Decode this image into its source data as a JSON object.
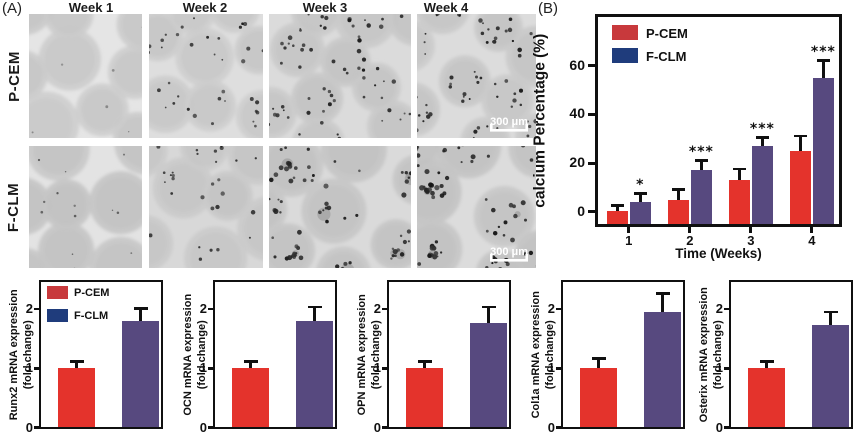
{
  "panel_a": {
    "label": "(A)",
    "col_headers": [
      "Week 1",
      "Week 2",
      "Week 3",
      "Week 4"
    ],
    "row_labels": [
      "P-CEM",
      "F-CLM"
    ],
    "scale_bar_text": "300 μm",
    "cells": [
      {
        "name": "micrograph-p-cem-week-1",
        "row": "P-CEM",
        "col": "Week 1",
        "spheres": 9,
        "dots_per_sphere": 1,
        "dot_r": 1.0,
        "dot_opacity": 0.45,
        "bg": "#e5e5e5",
        "sphere_fill": "#cbcbcb",
        "clustered": false,
        "scalebar": false
      },
      {
        "name": "micrograph-p-cem-week-2",
        "row": "P-CEM",
        "col": "Week 2",
        "spheres": 8,
        "dots_per_sphere": 6,
        "dot_r": 1.5,
        "dot_opacity": 0.85,
        "bg": "#dedede",
        "sphere_fill": "#cdcdcd",
        "clustered": false,
        "scalebar": false
      },
      {
        "name": "micrograph-p-cem-week-3",
        "row": "P-CEM",
        "col": "Week 3",
        "spheres": 10,
        "dots_per_sphere": 9,
        "dot_r": 1.6,
        "dot_opacity": 0.9,
        "bg": "#dbdbdb",
        "sphere_fill": "#c9c9c9",
        "clustered": false,
        "scalebar": false
      },
      {
        "name": "micrograph-p-cem-week-4",
        "row": "P-CEM",
        "col": "Week 4",
        "spheres": 9,
        "dots_per_sphere": 11,
        "dot_r": 1.6,
        "dot_opacity": 0.9,
        "bg": "#dcdcdc",
        "sphere_fill": "#cacaca",
        "clustered": false,
        "scalebar": true
      },
      {
        "name": "micrograph-f-clm-week-1",
        "row": "F-CLM",
        "col": "Week 1",
        "spheres": 9,
        "dots_per_sphere": 3,
        "dot_r": 1.2,
        "dot_opacity": 0.6,
        "bg": "#e3e3e3",
        "sphere_fill": "#c6c6c6",
        "clustered": false,
        "scalebar": false
      },
      {
        "name": "micrograph-f-clm-week-2",
        "row": "F-CLM",
        "col": "Week 2",
        "spheres": 8,
        "dots_per_sphere": 7,
        "dot_r": 1.6,
        "dot_opacity": 0.85,
        "bg": "#d8d8d8",
        "sphere_fill": "#cacaca",
        "clustered": false,
        "scalebar": false
      },
      {
        "name": "micrograph-f-clm-week-3",
        "row": "F-CLM",
        "col": "Week 3",
        "spheres": 10,
        "dots_per_sphere": 14,
        "dot_r": 1.8,
        "dot_opacity": 0.9,
        "bg": "#dadada",
        "sphere_fill": "#c6c6c6",
        "clustered": true,
        "scalebar": false
      },
      {
        "name": "micrograph-f-clm-week-4",
        "row": "F-CLM",
        "col": "Week 4",
        "spheres": 10,
        "dots_per_sphere": 18,
        "dot_r": 1.9,
        "dot_opacity": 0.95,
        "bg": "#dcdcdc",
        "sphere_fill": "#c5c5c5",
        "clustered": true,
        "scalebar": true
      }
    ]
  },
  "panel_b": {
    "label": "(B)"
  },
  "legend": {
    "entries": [
      {
        "label": "P-CEM",
        "swatch_color": "#c8393c",
        "bar_color": "#e4332c"
      },
      {
        "label": "F-CLM",
        "swatch_color": "#1f3c7c",
        "bar_color": "#57497f"
      }
    ]
  },
  "chart_data": [
    {
      "id": "calcium-percentage",
      "type": "bar",
      "panel": "B",
      "xlabel": "Time (Weeks)",
      "ylabel": "calcium Percentage (%)",
      "categories": [
        "1",
        "2",
        "3",
        "4"
      ],
      "series": [
        {
          "name": "P-CEM",
          "color": "#e4332c",
          "values": [
            0.5,
            5,
            13,
            25
          ],
          "errors": [
            2,
            4,
            4.5,
            6
          ]
        },
        {
          "name": "F-CLM",
          "color": "#57497f",
          "values": [
            4,
            17,
            27,
            55
          ],
          "errors": [
            3.5,
            4,
            3.5,
            7
          ]
        }
      ],
      "significance": {
        "on_series": "F-CLM",
        "labels": [
          "*",
          "***",
          "***",
          "***"
        ]
      },
      "yticks": [
        0,
        20,
        40,
        60
      ],
      "ylim": [
        -5,
        80
      ],
      "grid": false,
      "legend_position": "top-left"
    },
    {
      "id": "runx2",
      "type": "bar",
      "ylabel": "Runx2 mRNA expression",
      "ylabel2": "(fold change)",
      "categories": [
        "P-CEM",
        "F-CLM"
      ],
      "values": [
        1.0,
        1.8
      ],
      "errors": [
        0.1,
        0.2
      ],
      "yticks": [
        0,
        1,
        2
      ],
      "ylim": [
        0,
        2.45
      ],
      "grid": false,
      "show_legend": true
    },
    {
      "id": "ocn",
      "type": "bar",
      "ylabel": "OCN mRNA expression",
      "ylabel2": "(fold change)",
      "categories": [
        "P-CEM",
        "F-CLM"
      ],
      "values": [
        1.0,
        1.8
      ],
      "errors": [
        0.1,
        0.22
      ],
      "yticks": [
        0,
        1,
        2
      ],
      "ylim": [
        0,
        2.45
      ],
      "grid": false,
      "show_legend": false
    },
    {
      "id": "opn",
      "type": "bar",
      "ylabel": "OPN mRNA expression",
      "ylabel2": "(fold change)",
      "categories": [
        "P-CEM",
        "F-CLM"
      ],
      "values": [
        1.0,
        1.75
      ],
      "errors": [
        0.1,
        0.27
      ],
      "yticks": [
        0,
        1,
        2
      ],
      "ylim": [
        0,
        2.45
      ],
      "grid": false,
      "show_legend": false
    },
    {
      "id": "col1a",
      "type": "bar",
      "ylabel": "Col1a mRNA expression",
      "ylabel2": "(fold change)",
      "categories": [
        "P-CEM",
        "F-CLM"
      ],
      "values": [
        1.0,
        1.95
      ],
      "errors": [
        0.15,
        0.3
      ],
      "yticks": [
        0,
        1,
        2
      ],
      "ylim": [
        0,
        2.45
      ],
      "grid": false,
      "show_legend": false
    },
    {
      "id": "osterix",
      "type": "bar",
      "ylabel": "Osterix mRNA expression",
      "ylabel2": "(fold change)",
      "categories": [
        "P-CEM",
        "F-CLM"
      ],
      "values": [
        1.0,
        1.72
      ],
      "errors": [
        0.1,
        0.22
      ],
      "yticks": [
        0,
        1,
        2
      ],
      "ylim": [
        0,
        2.45
      ],
      "grid": false,
      "show_legend": false
    }
  ]
}
